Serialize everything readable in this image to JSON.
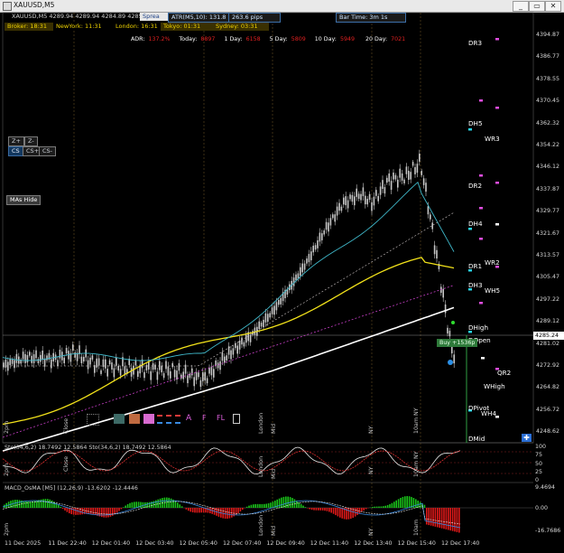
{
  "window": {
    "title": "XAUUSD,M5",
    "minimize_label": "_",
    "restore_label": "▭",
    "close_label": "✕"
  },
  "chart_header": "XAUUSD,M5 4289.94 4289.94 4284.89 4285.24",
  "top_panel": {
    "spread_label": "Sprea",
    "atr_label": "ATR(M5,10): 131.8",
    "atr_pips": "263.6 pips",
    "bar_time": "Bar Time: 3m 1s"
  },
  "sessions": {
    "broker": "Broker: 18:31",
    "newyork": "NewYork: 11:31",
    "london": "London: 16:31",
    "tokyo": "Tokyo: 01:31",
    "sydney": "Sydney: 03:31"
  },
  "adr": {
    "label": "ADR:",
    "adr_pct": "137.2%",
    "today_label": "Today:",
    "today_val": "8897",
    "day1_label": "1 Day:",
    "day1_val": "6158",
    "day5_label": "5 Day:",
    "day5_val": "5809",
    "day10_label": "10 Day:",
    "day10_val": "5949",
    "day20_label": "20 Day:",
    "day20_val": "7021"
  },
  "tool_buttons": {
    "zoom_plus": "Z+",
    "zoom_minus": "Z-",
    "cs": "CS",
    "cs_plus": "CS+",
    "cs_minus": "CS-",
    "mas_hide": "MAs Hide"
  },
  "price_axis": [
    "4394.87",
    "4386.77",
    "4378.55",
    "4370.45",
    "4362.32",
    "4354.22",
    "4346.12",
    "4337.87",
    "4329.77",
    "4321.67",
    "4313.57",
    "4305.47",
    "4297.22",
    "4289.12",
    "4281.02",
    "4272.92",
    "4264.82",
    "4256.72",
    "4248.62"
  ],
  "current_price": "4285.24",
  "levels": {
    "dr3": "DR3",
    "dh5": "DH5",
    "wr3": "WR3",
    "dr2": "DR2",
    "dh4": "DH4",
    "dr1": "DR1",
    "wr2": "WR2",
    "dh3": "DH3",
    "wh5": "WH5",
    "dhigh": "DHigh",
    "dopen": "DOpen",
    "qr2": "QR2",
    "whigh": "WHigh",
    "dpivot": "DPivot",
    "wh4": "WH4",
    "dmid": "DMid"
  },
  "trade_label": "Buy +1536p",
  "session_labels": {
    "close": "Close",
    "london": "London",
    "mid": "Mid",
    "ny": "NY",
    "tenam_ny": "10am NY",
    "tenam": "10am",
    "twopm": "2pm"
  },
  "stoch": {
    "label": "Sto(34,6,2) 18.7492 12.5864  Sto(34,6,2) 18.7492 12.5864",
    "axis": [
      "100",
      "75",
      "50",
      "25",
      "0"
    ]
  },
  "macd": {
    "label": "MACD_OsMA [M5] (12,26,9) -13.6202 -12.4446",
    "axis": [
      "9.4694",
      "0.00",
      "-16.7686"
    ]
  },
  "time_axis": [
    "11 Dec 2025",
    "11 Dec 22:40",
    "12 Dec 01:40",
    "12 Dec 03:40",
    "12 Dec 05:40",
    "12 Dec 07:40",
    "12 Dec 09:40",
    "12 Dec 11:40",
    "12 Dec 13:40",
    "12 Dec 15:40",
    "12 Dec 17:40"
  ],
  "colors": {
    "background": "#000000",
    "candles": "#c8c8c8",
    "ma_yellow": "#f2e21a",
    "ma_white": "#ffffff",
    "ma_cyan": "#3fb7c9",
    "ma_magenta": "#c63fc6",
    "macd_up": "#19c219",
    "macd_down": "#e01919",
    "level_magenta": "#e04de0",
    "level_cyan": "#28d3e6"
  }
}
